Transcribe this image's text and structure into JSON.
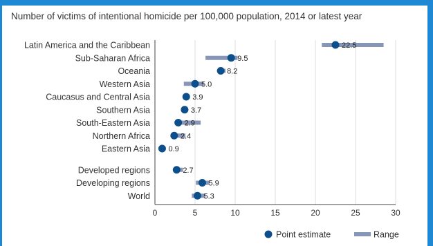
{
  "chart_data": {
    "type": "scatter",
    "title": "Number of victims of intentional homicide per 100,000 population, 2014 or latest year",
    "xlim": [
      0,
      30
    ],
    "xticks": [
      "0",
      "5",
      "10",
      "15",
      "20",
      "25",
      "30"
    ],
    "grid": true,
    "legend_position": "bottom-right",
    "legend": {
      "point": "Point estimate",
      "range": "Range"
    },
    "colors": {
      "point": "#0d4f8b",
      "range": "#8796b7",
      "frame": "#1e88d4"
    },
    "groups": [
      [
        {
          "region": "Latin America and the Caribbean",
          "value": 22.5,
          "label": "22.5",
          "range": [
            20.8,
            28.5
          ]
        },
        {
          "region": "Sub-Saharan Africa",
          "value": 9.5,
          "label": "9.5",
          "range": [
            6.3,
            10.3
          ]
        },
        {
          "region": "Oceania",
          "value": 8.2,
          "label": "8.2",
          "range": [
            7.9,
            8.8
          ]
        },
        {
          "region": "Western Asia",
          "value": 5.0,
          "label": "5.0",
          "range": [
            3.6,
            6.1
          ]
        },
        {
          "region": "Caucasus and Central Asia",
          "value": 3.9,
          "label": "3.9",
          "range": [
            3.6,
            4.2
          ]
        },
        {
          "region": "Southern Asia",
          "value": 3.7,
          "label": "3.7",
          "range": [
            3.5,
            3.9
          ]
        },
        {
          "region": "South-Eastern Asia",
          "value": 2.9,
          "label": "2.9",
          "range": [
            2.5,
            5.7
          ]
        },
        {
          "region": "Northern Africa",
          "value": 2.4,
          "label": "2.4",
          "range": [
            2.2,
            3.8
          ]
        },
        {
          "region": "Eastern Asia",
          "value": 0.9,
          "label": "0.9",
          "range": [
            0.8,
            1.0
          ]
        }
      ],
      [
        {
          "region": "Developed regions",
          "value": 2.7,
          "label": "2.7",
          "range": [
            2.5,
            3.5
          ]
        },
        {
          "region": "Developing regions",
          "value": 5.9,
          "label": "5.9",
          "range": [
            5.1,
            6.8
          ]
        },
        {
          "region": "World",
          "value": 5.3,
          "label": "5.3",
          "range": [
            4.6,
            6.3
          ]
        }
      ]
    ]
  }
}
